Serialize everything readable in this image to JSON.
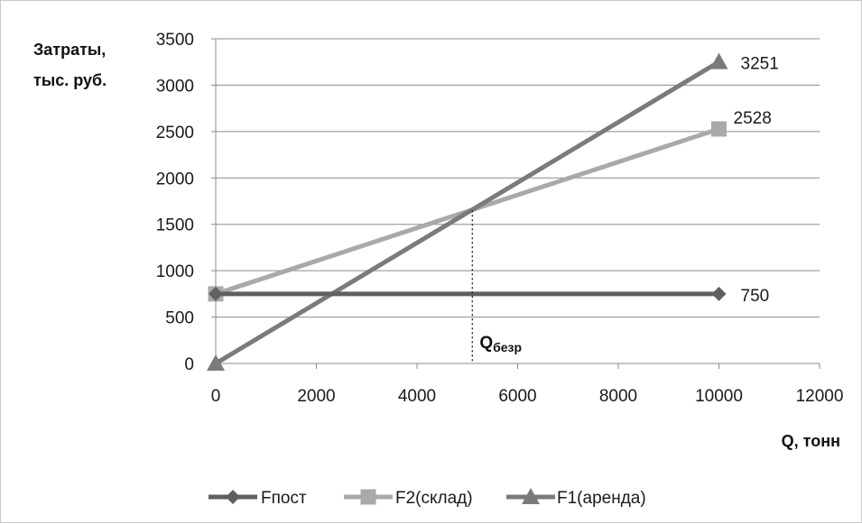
{
  "chart_data": {
    "type": "line",
    "title": "",
    "ylabel_lines": [
      "Затраты,",
      "тыс. руб."
    ],
    "xlabel": "Q, тонн",
    "xlim": [
      0,
      12000
    ],
    "ylim": [
      0,
      3500
    ],
    "xticks": [
      0,
      2000,
      4000,
      6000,
      8000,
      10000,
      12000
    ],
    "yticks": [
      0,
      500,
      1000,
      1500,
      2000,
      2500,
      3000,
      3500
    ],
    "grid": "horizontal",
    "legend_position": "bottom",
    "series": [
      {
        "name": "Fпост",
        "color": "#606060",
        "marker": "diamond",
        "x": [
          0,
          10000
        ],
        "y": [
          750,
          750
        ],
        "end_label": "750"
      },
      {
        "name": "F2(склад)",
        "color": "#a9a9a9",
        "marker": "square",
        "x": [
          0,
          10000
        ],
        "y": [
          750,
          2528
        ],
        "end_label": "2528"
      },
      {
        "name": "F1(аренда)",
        "color": "#7b7b7b",
        "marker": "triangle",
        "x": [
          0,
          10000
        ],
        "y": [
          0,
          3251
        ],
        "end_label": "3251"
      }
    ],
    "annotation": {
      "text_main": "Q",
      "text_sub": "безр",
      "x": 5100,
      "y": 1650
    }
  }
}
